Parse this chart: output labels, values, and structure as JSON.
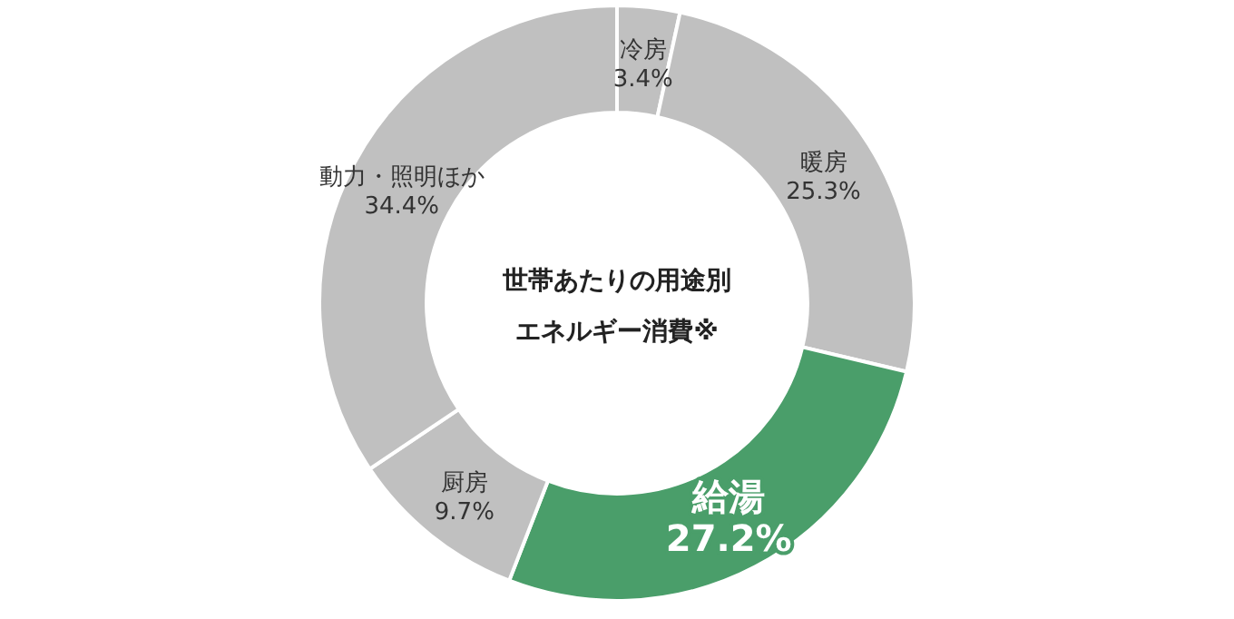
{
  "chart_data": {
    "type": "donut",
    "title": "世帯あたりの用途別",
    "subtitle": "エネルギー消費※",
    "categories": [
      "冷房",
      "暖房",
      "給湯",
      "厨房",
      "動力・照明ほか"
    ],
    "values": [
      3.4,
      25.3,
      27.2,
      9.7,
      34.4
    ],
    "value_labels": [
      "3.4%",
      "25.3%",
      "27.2%",
      "9.7%",
      "34.4%"
    ],
    "colors": [
      "#c0c0c0",
      "#c0c0c0",
      "#4a9e6a",
      "#c0c0c0",
      "#c0c0c0"
    ]
  }
}
